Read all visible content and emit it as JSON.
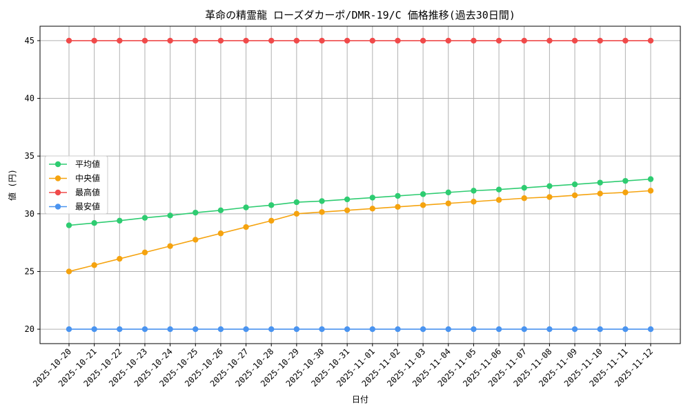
{
  "chart_data": {
    "type": "line",
    "title": "革命の精霊龍 ローズダカーポ/DMR-19/C 価格推移(過去30日間)",
    "xlabel": "日付",
    "ylabel": "値 (円)",
    "ylim": [
      18.75,
      46.25
    ],
    "yticks": [
      20,
      25,
      30,
      35,
      40,
      45
    ],
    "grid": true,
    "legend_position": "center-left",
    "categories": [
      "2025-10-20",
      "2025-10-21",
      "2025-10-22",
      "2025-10-23",
      "2025-10-24",
      "2025-10-25",
      "2025-10-26",
      "2025-10-27",
      "2025-10-28",
      "2025-10-29",
      "2025-10-30",
      "2025-10-31",
      "2025-11-01",
      "2025-11-02",
      "2025-11-03",
      "2025-11-04",
      "2025-11-05",
      "2025-11-06",
      "2025-11-07",
      "2025-11-08",
      "2025-11-09",
      "2025-11-10",
      "2025-11-11",
      "2025-11-12"
    ],
    "series": [
      {
        "name": "平均値",
        "color": "#2ecc71",
        "values": [
          29.0,
          29.2,
          29.4,
          29.65,
          29.85,
          30.1,
          30.3,
          30.55,
          30.75,
          31.0,
          31.1,
          31.25,
          31.4,
          31.55,
          31.7,
          31.85,
          32.0,
          32.1,
          32.25,
          32.4,
          32.55,
          32.7,
          32.85,
          33.0
        ]
      },
      {
        "name": "中央値",
        "color": "#f5a30f",
        "values": [
          25.0,
          25.55,
          26.1,
          26.65,
          27.2,
          27.75,
          28.3,
          28.85,
          29.4,
          30.0,
          30.15,
          30.3,
          30.45,
          30.6,
          30.75,
          30.9,
          31.05,
          31.2,
          31.35,
          31.45,
          31.6,
          31.75,
          31.85,
          32.0
        ]
      },
      {
        "name": "最高値",
        "color": "#f04a4a",
        "values": [
          45,
          45,
          45,
          45,
          45,
          45,
          45,
          45,
          45,
          45,
          45,
          45,
          45,
          45,
          45,
          45,
          45,
          45,
          45,
          45,
          45,
          45,
          45,
          45
        ]
      },
      {
        "name": "最安値",
        "color": "#4a94f0",
        "values": [
          20,
          20,
          20,
          20,
          20,
          20,
          20,
          20,
          20,
          20,
          20,
          20,
          20,
          20,
          20,
          20,
          20,
          20,
          20,
          20,
          20,
          20,
          20,
          20
        ]
      }
    ]
  }
}
